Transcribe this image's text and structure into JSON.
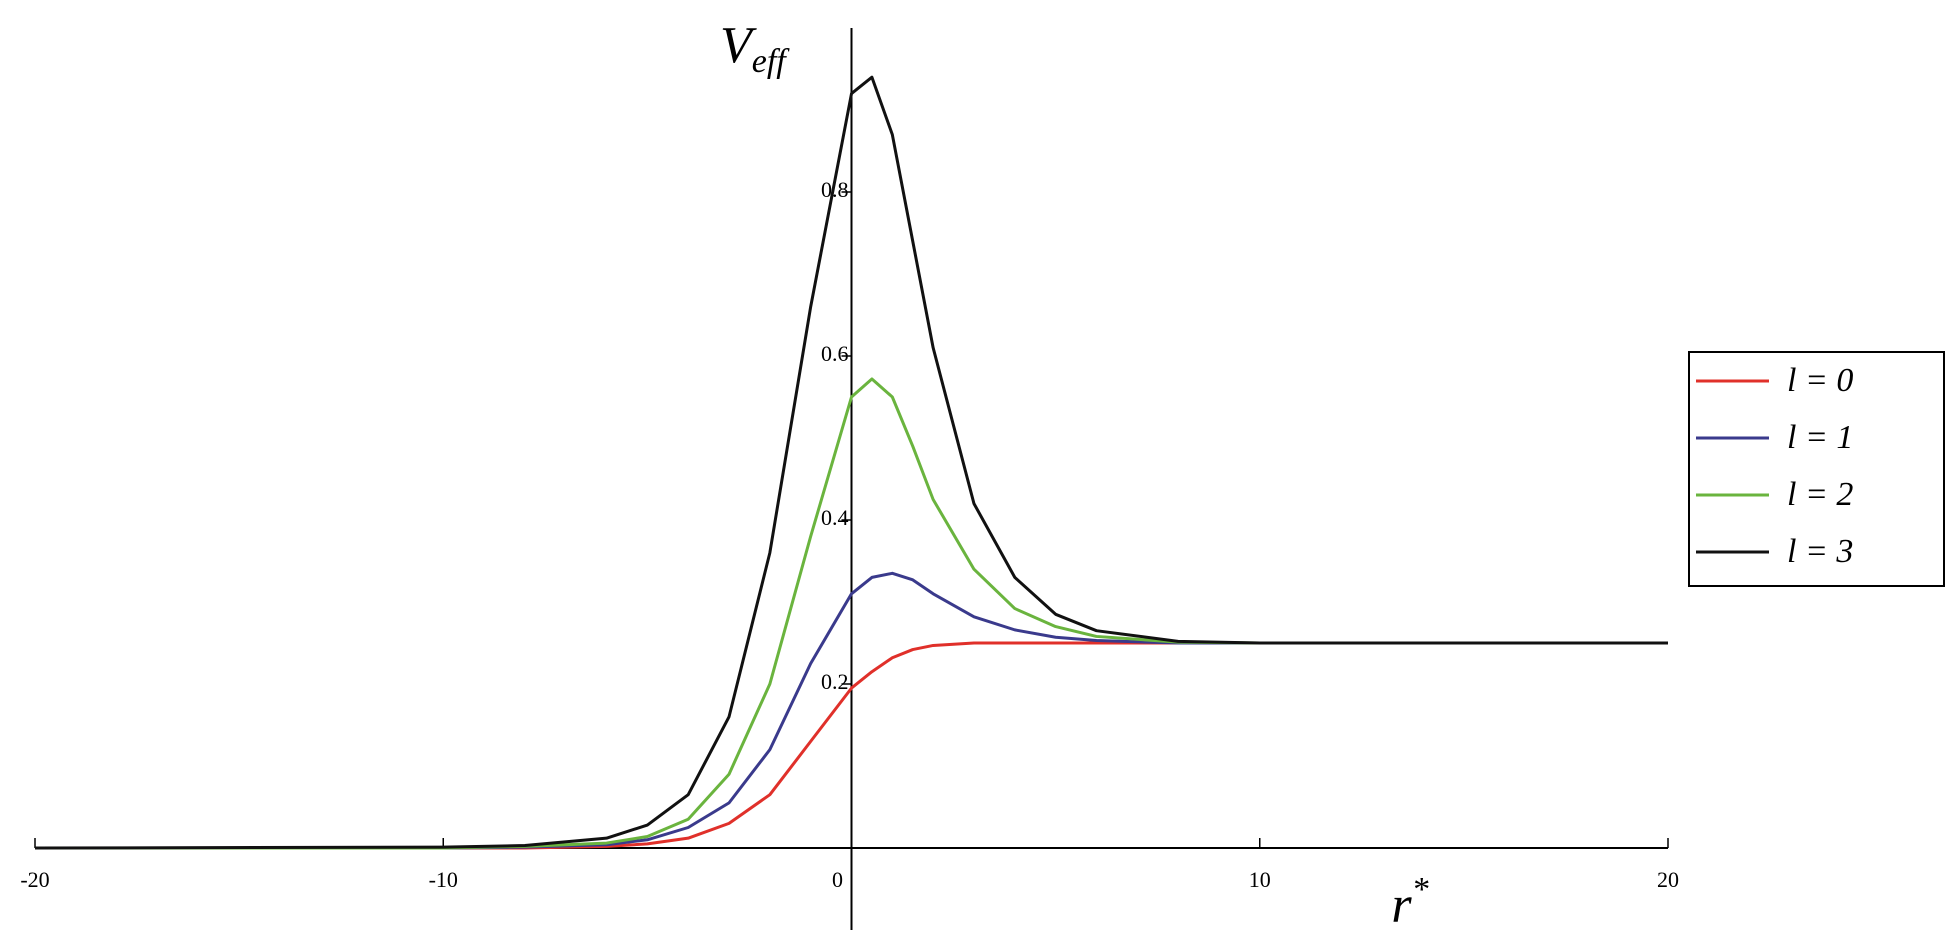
{
  "chart_data": {
    "type": "line",
    "x_label_main": "r",
    "x_label_sup": "*",
    "y_label_main": "V",
    "y_label_sub": "eff",
    "x": [
      -20,
      -10,
      -8,
      -6,
      -5,
      -4,
      -3,
      -2,
      -1,
      0,
      0.5,
      1,
      1.5,
      2,
      3,
      4,
      5,
      6,
      8,
      10,
      20
    ],
    "series": [
      {
        "name": "l = 0",
        "color": "#e0302a",
        "values": [
          0,
          0,
          0,
          0.002,
          0.005,
          0.012,
          0.03,
          0.065,
          0.13,
          0.195,
          0.215,
          0.232,
          0.242,
          0.247,
          0.25,
          0.25,
          0.25,
          0.25,
          0.25,
          0.25,
          0.25
        ]
      },
      {
        "name": "l = 1",
        "color": "#3a3a8c",
        "values": [
          0,
          0,
          0.001,
          0.004,
          0.01,
          0.025,
          0.055,
          0.12,
          0.225,
          0.31,
          0.33,
          0.335,
          0.327,
          0.31,
          0.282,
          0.266,
          0.257,
          0.253,
          0.25,
          0.25,
          0.25
        ]
      },
      {
        "name": "l = 2",
        "color": "#6ab43e",
        "values": [
          0,
          0,
          0.002,
          0.006,
          0.014,
          0.035,
          0.09,
          0.2,
          0.38,
          0.55,
          0.572,
          0.55,
          0.49,
          0.425,
          0.34,
          0.292,
          0.27,
          0.258,
          0.251,
          0.25,
          0.25
        ]
      },
      {
        "name": "l = 3",
        "color": "#111111",
        "values": [
          0,
          0.001,
          0.003,
          0.012,
          0.028,
          0.065,
          0.16,
          0.36,
          0.66,
          0.92,
          0.94,
          0.87,
          0.74,
          0.61,
          0.42,
          0.33,
          0.285,
          0.265,
          0.252,
          0.25,
          0.25
        ]
      }
    ],
    "xlim": [
      -20,
      20
    ],
    "xticks": [
      -20,
      -10,
      0,
      10,
      20
    ],
    "ylim": [
      -0.1,
      1
    ],
    "yticks": [
      0.2,
      0.4,
      0.6,
      0.8
    ],
    "legend": "right"
  }
}
